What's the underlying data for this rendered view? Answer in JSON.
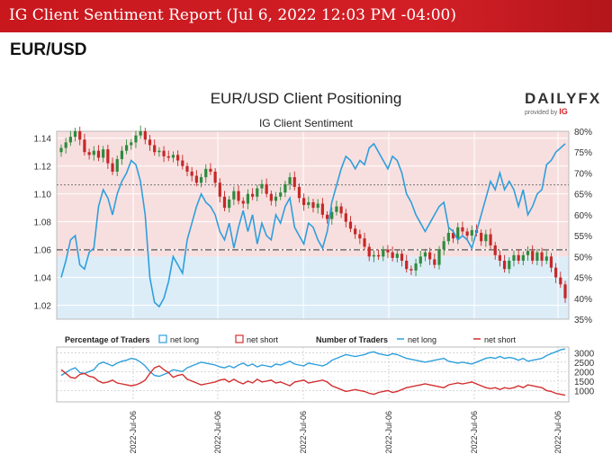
{
  "banner": {
    "title": "IG Client Sentiment Report (Jul 6, 2022 12:03 PM -04:00)"
  },
  "pair": "EUR/USD",
  "logo": {
    "word": "DAILY",
    "word_fx": "FX",
    "provided_by": "provided by",
    "ig": "IG"
  },
  "colors": {
    "long": "#2f9fdc",
    "short": "#d32f2f",
    "bg_long": "#dcedf8",
    "bg_short": "#f8dfdf",
    "candle_up": "#2e8b3e",
    "candle_down": "#c62828"
  },
  "chart_data": [
    {
      "type": "candlestick+line",
      "title": "EUR/USD Client Positioning",
      "subtitle": "IG Client Sentiment",
      "price_axis": {
        "ylim": [
          1.01,
          1.145
        ],
        "ticks": [
          1.02,
          1.04,
          1.06,
          1.08,
          1.1,
          1.12,
          1.14
        ],
        "tick_labels": [
          "1.02",
          "1.04",
          "1.06",
          "1.08",
          "1.10",
          "1.12",
          "1.14"
        ]
      },
      "pct_axis": {
        "ylim": [
          35,
          80
        ],
        "ticks": [
          35,
          40,
          45,
          50,
          55,
          60,
          65,
          70,
          75,
          80
        ],
        "tick_labels": [
          "35%",
          "40%",
          "45%",
          "50%",
          "55%",
          "60%",
          "65%",
          "70%",
          "75%",
          "80%"
        ]
      },
      "reference_lines": {
        "price_dashdot": 1.0598,
        "price_dotted": 1.1065
      },
      "price_closes": [
        1.133,
        1.137,
        1.141,
        1.145,
        1.139,
        1.13,
        1.128,
        1.131,
        1.126,
        1.132,
        1.122,
        1.116,
        1.125,
        1.131,
        1.135,
        1.137,
        1.142,
        1.145,
        1.139,
        1.135,
        1.13,
        1.131,
        1.127,
        1.126,
        1.128,
        1.124,
        1.12,
        1.116,
        1.113,
        1.108,
        1.112,
        1.118,
        1.116,
        1.108,
        1.098,
        1.09,
        1.096,
        1.102,
        1.095,
        1.093,
        1.1,
        1.098,
        1.104,
        1.107,
        1.1,
        1.095,
        1.098,
        1.101,
        1.107,
        1.112,
        1.105,
        1.097,
        1.092,
        1.094,
        1.09,
        1.093,
        1.085,
        1.082,
        1.087,
        1.091,
        1.086,
        1.08,
        1.075,
        1.071,
        1.068,
        1.062,
        1.055,
        1.056,
        1.055,
        1.06,
        1.058,
        1.054,
        1.057,
        1.052,
        1.046,
        1.045,
        1.05,
        1.055,
        1.058,
        1.053,
        1.049,
        1.06,
        1.066,
        1.072,
        1.068,
        1.076,
        1.073,
        1.07,
        1.074,
        1.072,
        1.066,
        1.071,
        1.063,
        1.056,
        1.052,
        1.046,
        1.052,
        1.056,
        1.052,
        1.056,
        1.059,
        1.052,
        1.058,
        1.052,
        1.055,
        1.047,
        1.04,
        1.035,
        1.025
      ],
      "long_pct": [
        45,
        49,
        54,
        55,
        48,
        47,
        51,
        52,
        62,
        66,
        64,
        60,
        65,
        68,
        70,
        73,
        72,
        68,
        60,
        45,
        39,
        38,
        40,
        44,
        50,
        48,
        46,
        54,
        58,
        62,
        65,
        63,
        62,
        60,
        56,
        54,
        58,
        52,
        57,
        61,
        56,
        60,
        53,
        58,
        55,
        54,
        60,
        58,
        62,
        64,
        57,
        55,
        53,
        58,
        57,
        54,
        52,
        56,
        63,
        67,
        71,
        74,
        73,
        71,
        73,
        72,
        76,
        77,
        75,
        73,
        71,
        74,
        73,
        70,
        65,
        63,
        60,
        58,
        56,
        58,
        60,
        62,
        63,
        57,
        56,
        54,
        55,
        54,
        52,
        56,
        60,
        64,
        68,
        66,
        70,
        66,
        68,
        66,
        62,
        66,
        60,
        62,
        65,
        66,
        72,
        73,
        75,
        76,
        77
      ],
      "traders": {
        "long_series": [
          1800,
          1950,
          2100,
          2200,
          1950,
          1900,
          2000,
          2100,
          2400,
          2500,
          2400,
          2300,
          2450,
          2550,
          2600,
          2700,
          2650,
          2500,
          2300,
          2000,
          1800,
          1750,
          1850,
          1950,
          2100,
          2050,
          2000,
          2200,
          2300,
          2400,
          2500,
          2450,
          2400,
          2350,
          2250,
          2200,
          2300,
          2200,
          2350,
          2450,
          2300,
          2400,
          2250,
          2350,
          2300,
          2250,
          2400,
          2350,
          2450,
          2550,
          2400,
          2350,
          2300,
          2450,
          2400,
          2350,
          2300,
          2400,
          2600,
          2700,
          2800,
          2900,
          2850,
          2800,
          2850,
          2900,
          3000,
          3050,
          2950,
          2900,
          2850,
          2950,
          2900,
          2800,
          2700,
          2650,
          2600,
          2550,
          2500,
          2550,
          2600,
          2650,
          2700,
          2550,
          2500,
          2450,
          2500,
          2450,
          2400,
          2500,
          2600,
          2700,
          2750,
          2700,
          2800,
          2700,
          2750,
          2700,
          2600,
          2700,
          2550,
          2600,
          2650,
          2700,
          2850,
          2950,
          3050,
          3150,
          3200
        ],
        "short_series": [
          2100,
          1900,
          1700,
          1650,
          1850,
          1900,
          1750,
          1700,
          1500,
          1400,
          1450,
          1550,
          1400,
          1350,
          1300,
          1250,
          1300,
          1400,
          1550,
          1900,
          2200,
          2300,
          2100,
          1950,
          1700,
          1800,
          1850,
          1600,
          1500,
          1400,
          1300,
          1350,
          1400,
          1450,
          1550,
          1600,
          1450,
          1600,
          1450,
          1350,
          1500,
          1400,
          1600,
          1450,
          1500,
          1550,
          1400,
          1450,
          1350,
          1250,
          1450,
          1500,
          1550,
          1400,
          1450,
          1500,
          1550,
          1450,
          1250,
          1150,
          1050,
          950,
          1000,
          1050,
          1000,
          950,
          850,
          800,
          900,
          950,
          1000,
          900,
          950,
          1050,
          1150,
          1200,
          1250,
          1300,
          1350,
          1300,
          1250,
          1200,
          1150,
          1300,
          1350,
          1400,
          1350,
          1400,
          1450,
          1350,
          1250,
          1150,
          1100,
          1150,
          1050,
          1150,
          1100,
          1150,
          1250,
          1150,
          1300,
          1250,
          1200,
          1150,
          1000,
          950,
          850,
          800,
          750
        ],
        "ylim": [
          400,
          3300
        ],
        "ticks": [
          1000,
          1500,
          2000,
          2500,
          3000
        ],
        "tick_labels": [
          "1000",
          "1500",
          "2000",
          "2500",
          "3000"
        ]
      },
      "legend": {
        "percentage_title": "Percentage of Traders",
        "net_long": "net long",
        "net_short": "net short",
        "number_title": "Number of Traders",
        "net_long_line": "net long",
        "net_short_line": "net short"
      },
      "x_labels": [
        "2022-Jul-06",
        "2022-Jul-06",
        "2022-Jul-06",
        "2022-Jul-06",
        "2022-Jul-06",
        "2022-Jul-06"
      ]
    }
  ]
}
